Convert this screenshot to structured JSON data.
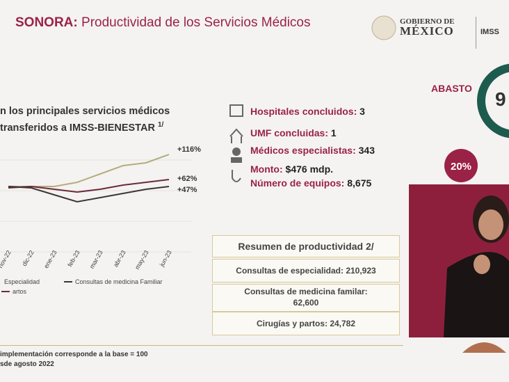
{
  "header": {
    "region": "SONORA:",
    "title": "Productividad de los Servicios Médicos",
    "gov_top": "GOBIERNO DE",
    "gov_bottom": "MÉXICO",
    "imss": "IMSS"
  },
  "chart_heading": {
    "line1": "n los principales servicios médicos",
    "line2": "transferidos a IMSS-BIENESTAR",
    "note": "1/"
  },
  "chart_data": {
    "type": "line",
    "categories": [
      "nov-22",
      "dic-22",
      "ene-23",
      "feb-23",
      "mar-23",
      "abr-23",
      "may-23",
      "jun-23"
    ],
    "series": [
      {
        "name": "Especialidad",
        "color": "#b5ad7e",
        "values": [
          47,
          47,
          47,
          56,
          74,
          92,
          98,
          116
        ],
        "value_labels": [
          null,
          null,
          null,
          null,
          null,
          null,
          null,
          "+116%"
        ]
      },
      {
        "name": "artos",
        "color": "#6b2a3a",
        "values": [
          44,
          47,
          41,
          35,
          41,
          50,
          56,
          62
        ],
        "value_labels": [
          null,
          null,
          null,
          null,
          null,
          null,
          null,
          "+62%"
        ]
      },
      {
        "name": "Consultas de medicina Familiar",
        "color": "#3d3535",
        "values": [
          47,
          44,
          29,
          14,
          23,
          32,
          41,
          47
        ],
        "value_labels": [
          null,
          null,
          null,
          null,
          null,
          null,
          null,
          "+47%"
        ]
      }
    ]
  },
  "stats": [
    {
      "label": "Hospitales concluidos:",
      "value": "3"
    },
    {
      "label": "UMF concluidas:",
      "value": "1"
    },
    {
      "label": "Médicos especialistas:",
      "value": "343"
    },
    {
      "label": "Monto:",
      "value": "$476 mdp."
    },
    {
      "label": "Número de equipos:",
      "value": "8,675"
    }
  ],
  "abasto": {
    "label": "ABASTO",
    "value": "9",
    "small": "20%"
  },
  "summary": {
    "title": "Resumen de productividad 2/",
    "rows": [
      "Consultas de especialidad: 210,923",
      "Consultas de medicina familar: 62,600",
      "Cirugías y partos: 24,782"
    ]
  },
  "footnotes": [
    "implementación corresponde a la base = 100",
    "sde agosto 2022"
  ]
}
